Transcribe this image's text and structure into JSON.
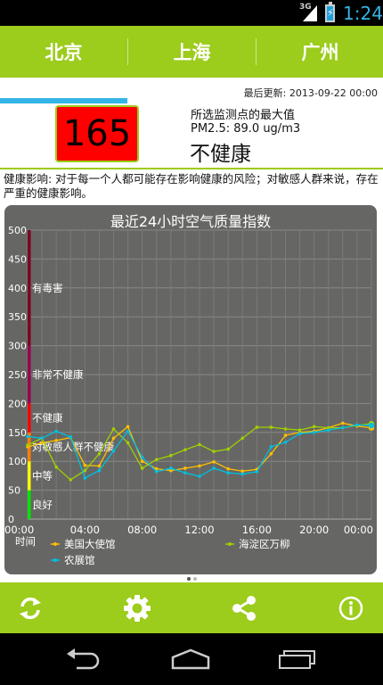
{
  "status_bar": {
    "network": "3G",
    "time": "1:24"
  },
  "tabs": [
    {
      "label": "北京",
      "selected": true
    },
    {
      "label": "上海",
      "selected": false
    },
    {
      "label": "广州",
      "selected": false
    }
  ],
  "summary": {
    "updated": "最后更新: 2013-09-22 00:00",
    "aqi_value": "165",
    "aqi_color": "#ff0000",
    "max_label": "所选监测点的最大值",
    "pm_label": "PM2.5: 89.0 ug/m3",
    "level": "不健康",
    "health": "健康影响: 对于每一个人都可能存在影响健康的风险；对敏感人群来说，存在严重的健康影响。"
  },
  "chart_data": {
    "type": "line",
    "title": "最近24小时空气质量指数",
    "xlabel": "时间",
    "ylabel": "",
    "ylim": [
      0,
      500
    ],
    "yticks": [
      0,
      50,
      100,
      150,
      200,
      250,
      300,
      350,
      400,
      450,
      500
    ],
    "ytick_labels": [
      "0",
      "50",
      "100",
      "150",
      "200",
      "250",
      "300",
      "350",
      "400",
      "450",
      "500"
    ],
    "x_tick_labels": [
      "00:00",
      "04:00",
      "08:00",
      "12:00",
      "16:00",
      "20:00",
      "00:00"
    ],
    "x_tick_hours": [
      0,
      4,
      8,
      12,
      16,
      20,
      24
    ],
    "grid": true,
    "legend_position": "bottom",
    "bands": [
      {
        "label": "良好",
        "from": 0,
        "to": 50,
        "color": "#00e400"
      },
      {
        "label": "中等",
        "from": 50,
        "to": 100,
        "color": "#ffff00"
      },
      {
        "label": "对敏感人群不健康",
        "from": 100,
        "to": 150,
        "color": "#ff7e00"
      },
      {
        "label": "不健康",
        "from": 150,
        "to": 200,
        "color": "#ff0000"
      },
      {
        "label": "非常不健康",
        "from": 200,
        "to": 300,
        "color": "#99004c"
      },
      {
        "label": "有毒害",
        "from": 300,
        "to": 500,
        "color": "#7e0023"
      }
    ],
    "x": [
      0,
      1,
      2,
      3,
      4,
      5,
      6,
      7,
      8,
      9,
      10,
      11,
      12,
      13,
      14,
      15,
      16,
      17,
      18,
      19,
      20,
      21,
      22,
      23,
      24
    ],
    "series": [
      {
        "name": "美国大使馆",
        "color": "#ffc000",
        "values": [
          125,
          132,
          136,
          141,
          93,
          92,
          140,
          160,
          100,
          87,
          84,
          88,
          92,
          99,
          87,
          83,
          86,
          113,
          145,
          150,
          152,
          158,
          166,
          161,
          158
        ]
      },
      {
        "name": "海淀区万柳",
        "color": "#a0d000",
        "values": [
          128,
          140,
          90,
          68,
          84,
          113,
          156,
          132,
          88,
          103,
          110,
          120,
          129,
          117,
          121,
          140,
          159,
          159,
          156,
          154,
          160,
          158,
          158,
          162,
          165
        ]
      },
      {
        "name": "农展馆",
        "color": "#00c0e0",
        "values": [
          143,
          140,
          152,
          142,
          71,
          84,
          118,
          152,
          107,
          82,
          88,
          80,
          74,
          88,
          80,
          78,
          82,
          125,
          133,
          148,
          150,
          154,
          158,
          163,
          162
        ]
      }
    ]
  },
  "bottom_bar": {
    "refresh_icon": "refresh-icon",
    "settings_icon": "gear-icon",
    "share_icon": "share-icon",
    "info_icon": "info-icon"
  },
  "nav_bar": {
    "back_icon": "back-icon",
    "home_icon": "home-icon",
    "recents_icon": "recents-icon"
  },
  "colors": {
    "accent": "#9ccc1c",
    "indicator": "#33b5e5",
    "chart_bg": "#666664"
  }
}
